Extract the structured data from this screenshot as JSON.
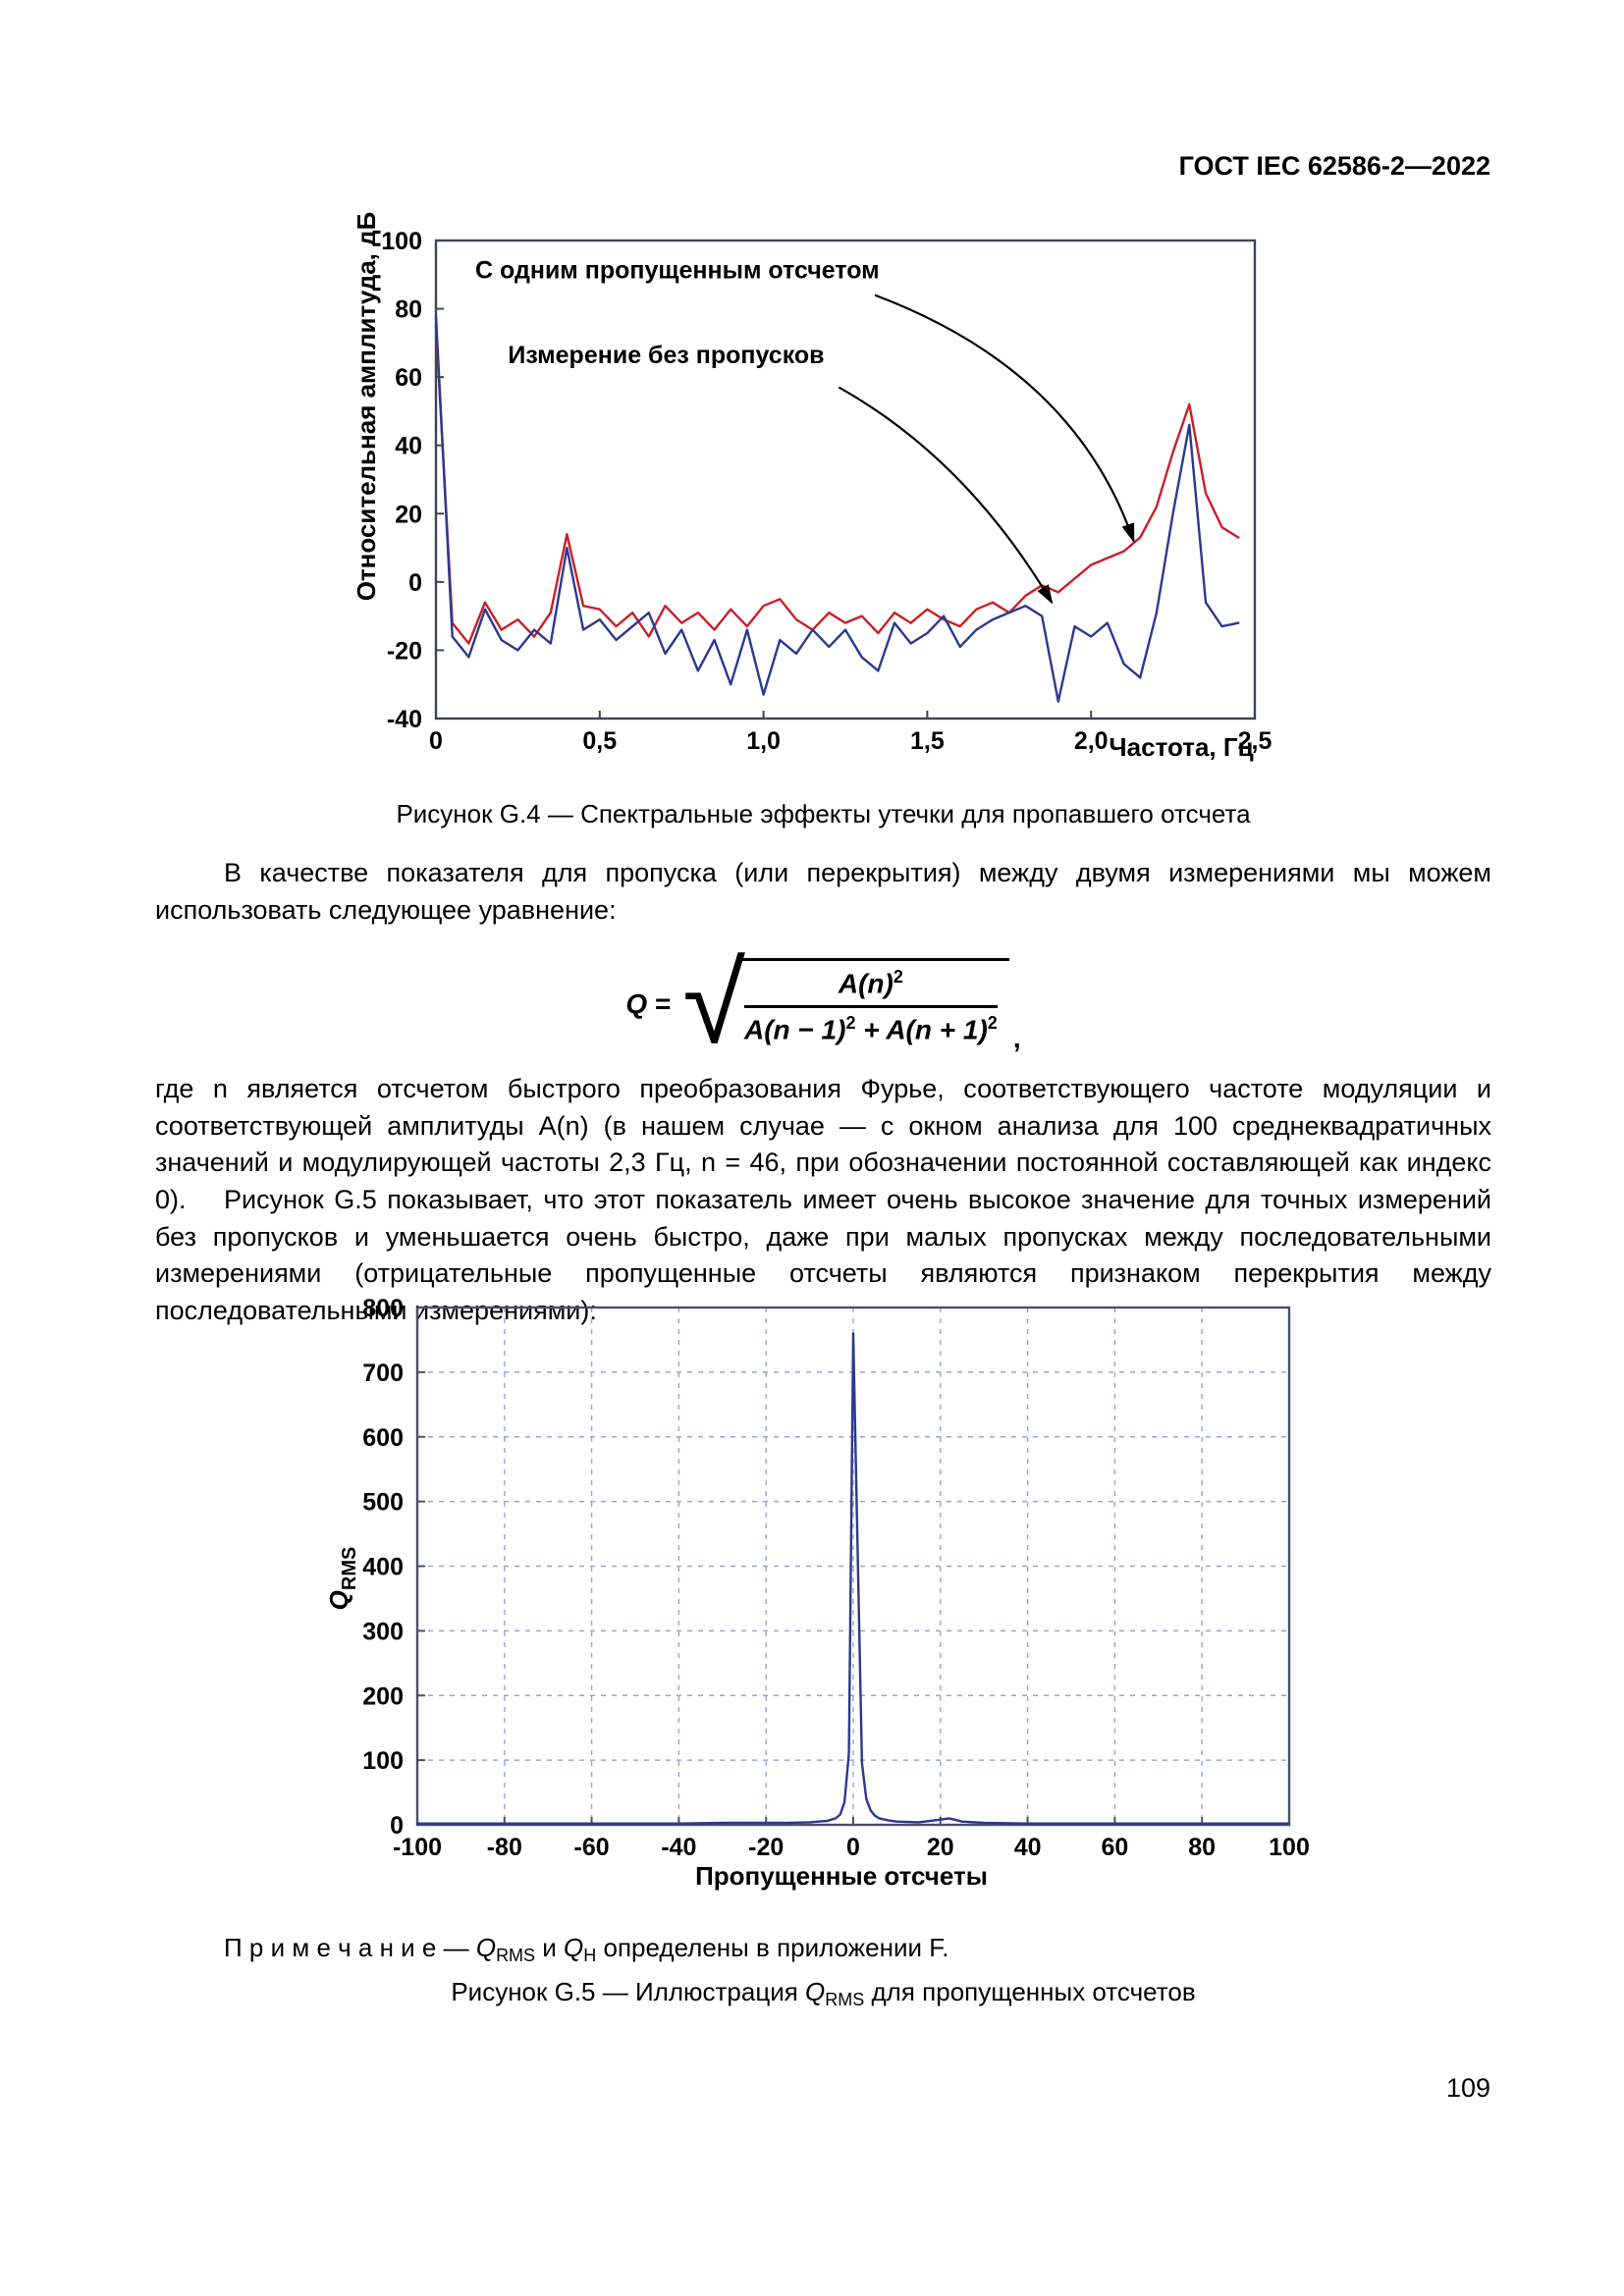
{
  "page": {
    "header": "ГОСТ IEC 62586-2—2022",
    "page_number": "109"
  },
  "paragraphs": {
    "p1": "В качестве показателя для пропуска (или перекрытия) между двумя измерениями мы можем использовать следующее уравнение:",
    "p2": "где n является отсчетом быстрого преобразования Фурье, соответствующего частоте модуляции и соответствующей амплитуды A(n) (в нашем случае — с окном анализа для 100 среднеквадратичных значений и модулирующей частоты 2,3 Гц, n = 46, при обозначении постоянной составляющей как индекс 0).",
    "p3": "Рисунок G.5 показывает, что этот показатель имеет очень высокое значение для точных измерений без пропусков и уменьшается очень быстро, даже при малых пропусках между последовательными измерениями (отрицательные пропущенные отсчеты являются признаком перекрытия между последовательными измерениями):"
  },
  "equation": {
    "lhs": "Q",
    "eq": "=",
    "num_base": "A(n)",
    "num_exp": "2",
    "den_p1": "A(n − 1)",
    "den_e1": "2",
    "den_p2": " + A(n + 1)",
    "den_e2": "2",
    "comma": ","
  },
  "note": {
    "label": "П р и м е ч а н и е",
    "dash": " — ",
    "q1": "Q",
    "q1_sub": "RMS",
    "mid": " и ",
    "q2": "Q",
    "q2_sub": "H",
    "tail": " определены в приложении F."
  },
  "figure_g5_caption": {
    "pre": "Рисунок G.5 — Иллюстрация ",
    "q": "Q",
    "q_sub": "RMS",
    "post": " для пропущенных отсчетов"
  },
  "chart_data": [
    {
      "type": "line",
      "title": "Рисунок G.4 — Спектральные эффекты утечки для пропавшего отсчета",
      "xlabel": "Частота, Гц",
      "ylabel": "Относительная амплитуда, дБ",
      "xlim": [
        0,
        2.5
      ],
      "ylim": [
        -40,
        100
      ],
      "xtick_vals": [
        0,
        0.5,
        1.0,
        1.5,
        2.0,
        2.5
      ],
      "xticks": [
        "0",
        "0,5",
        "1,0",
        "1,5",
        "2,0",
        "2,5"
      ],
      "ytick_vals": [
        100,
        80,
        60,
        40,
        20,
        0,
        -20,
        -40
      ],
      "yticks": [
        "100",
        "80",
        "60",
        "40",
        "20",
        "0",
        "-20",
        "-40"
      ],
      "grid": false,
      "border_color": "#3f4454",
      "series": [
        {
          "name": "С одним пропущенным отсчетом",
          "color": "#c8202a",
          "x": [
            0,
            0.05,
            0.1,
            0.15,
            0.2,
            0.25,
            0.3,
            0.35,
            0.4,
            0.45,
            0.5,
            0.55,
            0.6,
            0.65,
            0.7,
            0.75,
            0.8,
            0.85,
            0.9,
            0.95,
            1.0,
            1.05,
            1.1,
            1.15,
            1.2,
            1.25,
            1.3,
            1.35,
            1.4,
            1.45,
            1.5,
            1.55,
            1.6,
            1.65,
            1.7,
            1.75,
            1.8,
            1.85,
            1.9,
            1.95,
            2.0,
            2.05,
            2.1,
            2.15,
            2.2,
            2.25,
            2.3,
            2.35,
            2.4,
            2.45
          ],
          "y": [
            75,
            -12,
            -18,
            -6,
            -14,
            -11,
            -16,
            -9,
            14,
            -7,
            -8,
            -13,
            -9,
            -16,
            -7,
            -12,
            -9,
            -14,
            -8,
            -13,
            -7,
            -5,
            -11,
            -14,
            -9,
            -12,
            -10,
            -15,
            -9,
            -12,
            -8,
            -11,
            -13,
            -8,
            -6,
            -9,
            -4,
            -1,
            -3,
            1,
            5,
            7,
            9,
            13,
            22,
            38,
            52,
            26,
            16,
            13
          ]
        },
        {
          "name": "Измерение без пропусков",
          "color": "#2b3990",
          "x": [
            0,
            0.05,
            0.1,
            0.15,
            0.2,
            0.25,
            0.3,
            0.35,
            0.4,
            0.45,
            0.5,
            0.55,
            0.6,
            0.65,
            0.7,
            0.75,
            0.8,
            0.85,
            0.9,
            0.95,
            1.0,
            1.05,
            1.1,
            1.15,
            1.2,
            1.25,
            1.3,
            1.35,
            1.4,
            1.45,
            1.5,
            1.55,
            1.6,
            1.65,
            1.7,
            1.75,
            1.8,
            1.85,
            1.9,
            1.95,
            2.0,
            2.05,
            2.1,
            2.15,
            2.2,
            2.25,
            2.3,
            2.35,
            2.4,
            2.45
          ],
          "y": [
            78,
            -16,
            -22,
            -8,
            -17,
            -20,
            -14,
            -18,
            10,
            -14,
            -11,
            -17,
            -13,
            -9,
            -21,
            -14,
            -26,
            -17,
            -30,
            -14,
            -33,
            -17,
            -21,
            -14,
            -19,
            -14,
            -22,
            -26,
            -12,
            -18,
            -15,
            -10,
            -19,
            -14,
            -11,
            -9,
            -7,
            -10,
            -35,
            -13,
            -16,
            -12,
            -24,
            -28,
            -9,
            20,
            46,
            -6,
            -13,
            -12
          ]
        }
      ],
      "annotations": [
        {
          "text": "С одним пропущенным отсчетом",
          "tx": 0.12,
          "ty": 89,
          "ax": 1.34,
          "ay": 84,
          "cx": 1.95,
          "cy": 62,
          "ex": 2.13,
          "ey": 12
        },
        {
          "text": "Измерение без пропусков",
          "tx": 0.22,
          "ty": 64,
          "ax": 1.23,
          "ay": 57,
          "cx": 1.62,
          "cy": 36,
          "ex": 1.88,
          "ey": -6
        }
      ]
    },
    {
      "type": "line",
      "title": "Рисунок G.5 — Иллюстрация QRMS для пропущенных отсчетов",
      "xlabel": "Пропущенные отсчеты",
      "ylabel": "Q_RMS",
      "ylabel_parts": [
        {
          "t": "Q",
          "italic": true
        },
        {
          "t": "RMS",
          "sub": true
        }
      ],
      "xlim": [
        -100,
        100
      ],
      "ylim": [
        0,
        800
      ],
      "xtick_vals": [
        -100,
        -80,
        -60,
        -40,
        -20,
        0,
        20,
        40,
        60,
        80,
        100
      ],
      "xticks": [
        "-100",
        "-80",
        "-60",
        "-40",
        "-20",
        "0",
        "20",
        "40",
        "60",
        "80",
        "100"
      ],
      "ytick_vals": [
        0,
        100,
        200,
        300,
        400,
        500,
        600,
        700,
        800
      ],
      "yticks": [
        "0",
        "100",
        "200",
        "300",
        "400",
        "500",
        "600",
        "700",
        "800"
      ],
      "grid": true,
      "grid_color": "#9aa6c9",
      "border_color": "#474f6b",
      "series": [
        {
          "name": "Q_RMS",
          "color": "#2b3990",
          "x": [
            -100,
            -90,
            -80,
            -70,
            -60,
            -50,
            -40,
            -30,
            -20,
            -15,
            -10,
            -8,
            -6,
            -5,
            -4,
            -3,
            -2,
            -1,
            0,
            1,
            2,
            3,
            4,
            5,
            6,
            8,
            10,
            15,
            20,
            22,
            25,
            30,
            40,
            50,
            60,
            70,
            80,
            90,
            100
          ],
          "y": [
            2,
            2,
            2,
            2,
            2,
            2,
            2,
            3,
            3,
            3,
            4,
            5,
            6,
            8,
            10,
            16,
            35,
            110,
            760,
            430,
            95,
            40,
            22,
            14,
            10,
            7,
            5,
            4,
            8,
            10,
            5,
            3,
            2,
            2,
            2,
            2,
            2,
            2,
            2
          ]
        }
      ]
    }
  ]
}
